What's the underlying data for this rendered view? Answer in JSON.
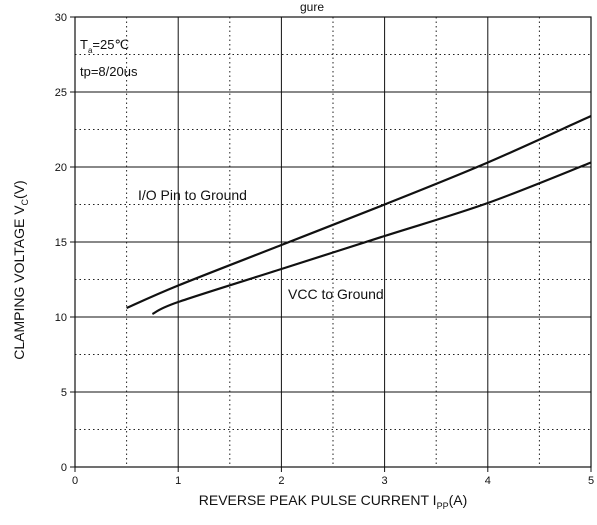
{
  "chart_data": {
    "type": "line",
    "title_partial": "gure",
    "xlabel_main": "REVERSE PEAK PULSE CURRENT  I",
    "xlabel_sub": "PP",
    "xlabel_tail": "(A)",
    "ylabel_main": "CLAMPING VOLTAGE  V",
    "ylabel_sub": "C",
    "ylabel_tail": "(V)",
    "xlim": [
      0,
      5
    ],
    "ylim": [
      0,
      30
    ],
    "x_ticks": [
      0,
      1,
      2,
      3,
      4,
      5
    ],
    "y_ticks": [
      0,
      5,
      10,
      15,
      20,
      25,
      30
    ],
    "x_tick_labels": [
      "0",
      "1",
      "2",
      "3",
      "4",
      "5"
    ],
    "y_tick_labels": [
      "0",
      "5",
      "10",
      "15",
      "20",
      "25",
      "30"
    ],
    "grid": "solid major lines, dotted minor lines",
    "annotations": {
      "ta_main": "T",
      "ta_sub": "a",
      "ta_tail": "=25℃",
      "tp": "tp=8/20us"
    },
    "series": [
      {
        "name": "I/O Pin to Ground",
        "x": [
          0.5,
          1.0,
          2.0,
          3.0,
          4.0,
          5.0
        ],
        "y": [
          10.6,
          12.1,
          14.8,
          17.5,
          20.3,
          23.4
        ]
      },
      {
        "name": "VCC to Ground",
        "x": [
          0.75,
          1.0,
          2.0,
          3.0,
          4.0,
          5.0
        ],
        "y": [
          10.2,
          11.0,
          13.2,
          15.4,
          17.6,
          20.3
        ]
      }
    ],
    "line_color": "#111111"
  }
}
